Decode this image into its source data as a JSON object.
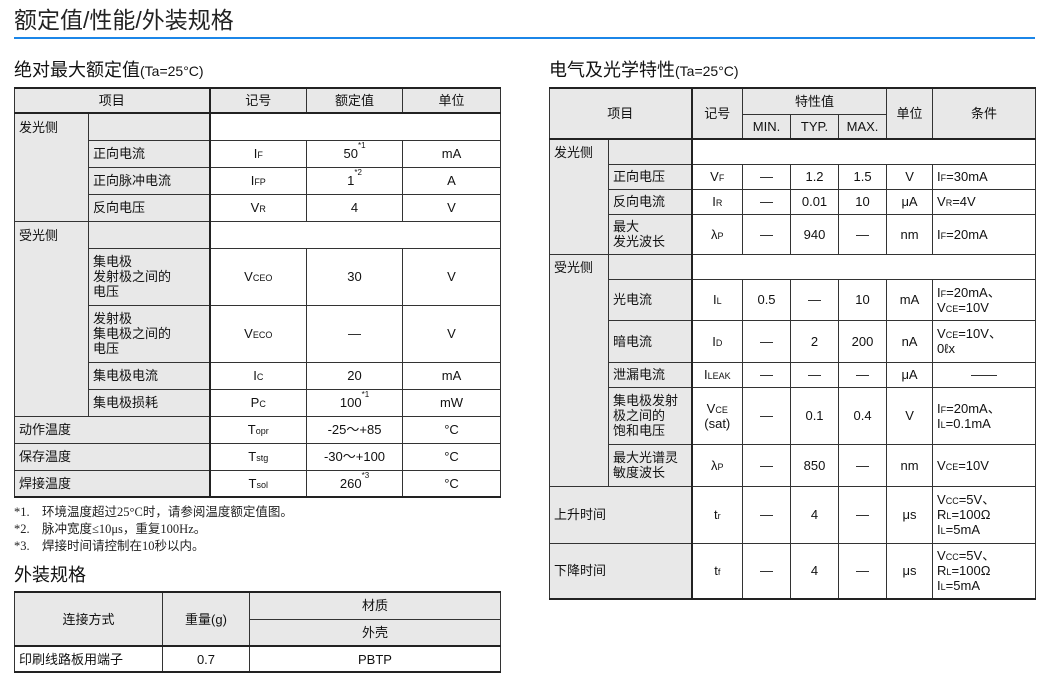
{
  "page_title": "额定值/性能/外装规格",
  "accent_color": "#1b86e8",
  "abs": {
    "heading": "绝对最大额定值",
    "cond": "(Ta=25°C)",
    "headers": [
      "项目",
      "记号",
      "额定值",
      "单位"
    ],
    "groups": [
      {
        "label": "发光侧",
        "rows": [
          {
            "label": "正向电流",
            "sym": [
              "I",
              "F"
            ],
            "value": "50",
            "sup": "*1",
            "unit": "mA"
          },
          {
            "label": "正向脉冲电流",
            "sym": [
              "I",
              "FP"
            ],
            "value": "1",
            "sup": "*2",
            "unit": "A"
          },
          {
            "label": "反向电压",
            "sym": [
              "V",
              "R"
            ],
            "value": "4",
            "sup": "",
            "unit": "V"
          }
        ]
      },
      {
        "label": "受光侧",
        "rows": [
          {
            "label": "集电极\n发射极之间的\n电压",
            "sym": [
              "V",
              "CEO"
            ],
            "value": "30",
            "sup": "",
            "unit": "V",
            "tall": true
          },
          {
            "label": "发射极\n集电极之间的\n电压",
            "sym": [
              "V",
              "ECO"
            ],
            "value": "—",
            "sup": "",
            "unit": "V",
            "tall": true
          },
          {
            "label": "集电极电流",
            "sym": [
              "I",
              "C"
            ],
            "value": "20",
            "sup": "",
            "unit": "mA"
          },
          {
            "label": "集电极损耗",
            "sym": [
              "P",
              "C"
            ],
            "value": "100",
            "sup": "*1",
            "unit": "mW"
          }
        ]
      }
    ],
    "full_rows": [
      {
        "label": "动作温度",
        "sym": [
          "T",
          "opr"
        ],
        "value": "-25～+85",
        "sup": "",
        "unit": "°C"
      },
      {
        "label": "保存温度",
        "sym": [
          "T",
          "stg"
        ],
        "value": "-30～+100",
        "sup": "",
        "unit": "°C"
      },
      {
        "label": "焊接温度",
        "sym": [
          "T",
          "sol"
        ],
        "value": "260",
        "sup": "*3",
        "unit": "°C"
      }
    ],
    "notes": [
      {
        "mark": "*1.",
        "text": "环境温度超过25°C时，请参阅温度额定值图。"
      },
      {
        "mark": "*2.",
        "text": "脉冲宽度≤10μs，重复100Hz。"
      },
      {
        "mark": "*3.",
        "text": "焊接时间请控制在10秒以内。"
      }
    ]
  },
  "pkg": {
    "heading": "外装规格",
    "headers": {
      "connection": "连接方式",
      "weight": "重量(g)",
      "material": "材质",
      "case": "外壳"
    },
    "row": {
      "connection": "印刷线路板用端子",
      "weight": "0.7",
      "case": "PBTP"
    }
  },
  "elec": {
    "heading": "电气及光学特性",
    "cond": "(Ta=25°C)",
    "headers": {
      "item": "项目",
      "symbol": "记号",
      "char": "特性值",
      "min": "MIN.",
      "typ": "TYP.",
      "max": "MAX.",
      "unit": "单位",
      "cond": "条件"
    },
    "groups": [
      {
        "label": "发光侧",
        "rows": [
          {
            "label": "正向电压",
            "sym": [
              "V",
              "F"
            ],
            "min": "—",
            "typ": "1.2",
            "max": "1.5",
            "unit": "V",
            "cond": [
              [
                "I",
                "F",
                "=30mA"
              ]
            ],
            "h": 25
          },
          {
            "label": "反向电流",
            "sym": [
              "I",
              "R"
            ],
            "min": "—",
            "typ": "0.01",
            "max": "10",
            "unit": "μA",
            "cond": [
              [
                "V",
                "R",
                "=4V"
              ]
            ],
            "h": 25
          },
          {
            "label": "最大\n发光波长",
            "sym": [
              "λ",
              "P"
            ],
            "min": "—",
            "typ": "940",
            "max": "—",
            "unit": "nm",
            "cond": [
              [
                "I",
                "F",
                "=20mA"
              ]
            ],
            "h": 40
          }
        ]
      },
      {
        "label": "受光侧",
        "rows": [
          {
            "label": "光电流",
            "sym": [
              "I",
              "L"
            ],
            "min": "0.5",
            "typ": "—",
            "max": "10",
            "unit": "mA",
            "cond": [
              [
                "I",
                "F",
                "=20mA、"
              ],
              [
                "V",
                "CE",
                "=10V"
              ]
            ],
            "h": 41
          },
          {
            "label": "暗电流",
            "sym": [
              "I",
              "D"
            ],
            "min": "—",
            "typ": "2",
            "max": "200",
            "unit": "nA",
            "cond": [
              [
                "V",
                "CE",
                "=10V、"
              ],
              [
                "",
                "",
                "0ℓx"
              ]
            ],
            "h": 42
          },
          {
            "label": "泄漏电流",
            "sym": [
              "I",
              "LEAK"
            ],
            "min": "—",
            "typ": "—",
            "max": "—",
            "unit": "μA",
            "cond": [
              [
                "",
                "",
                "——"
              ]
            ],
            "h": 25,
            "center": true
          },
          {
            "label": "集电极发射\n极之间的\n饱和电压",
            "sym": [
              "V",
              "CE",
              "(sat)"
            ],
            "min": "—",
            "typ": "0.1",
            "max": "0.4",
            "unit": "V",
            "cond": [
              [
                "I",
                "F",
                "=20mA、"
              ],
              [
                "I",
                "L",
                "=0.1mA"
              ]
            ],
            "h": 57
          },
          {
            "label": "最大光谱灵\n敏度波长",
            "sym": [
              "λ",
              "P"
            ],
            "min": "—",
            "typ": "850",
            "max": "—",
            "unit": "nm",
            "cond": [
              [
                "V",
                "CE",
                "=10V"
              ]
            ],
            "h": 42
          }
        ]
      }
    ],
    "full_rows": [
      {
        "label": "上升时间",
        "sym": [
          "t",
          "r"
        ],
        "min": "—",
        "typ": "4",
        "max": "—",
        "unit": "μs",
        "cond": [
          [
            "V",
            "CC",
            "=5V、"
          ],
          [
            "R",
            "L",
            "=100Ω"
          ],
          [
            "I",
            "L",
            "=5mA"
          ]
        ],
        "h": 57
      },
      {
        "label": "下降时间",
        "sym": [
          "t",
          "f"
        ],
        "min": "—",
        "typ": "4",
        "max": "—",
        "unit": "μs",
        "cond": [
          [
            "V",
            "CC",
            "=5V、"
          ],
          [
            "R",
            "L",
            "=100Ω"
          ],
          [
            "I",
            "L",
            "=5mA"
          ]
        ],
        "h": 56
      }
    ]
  }
}
